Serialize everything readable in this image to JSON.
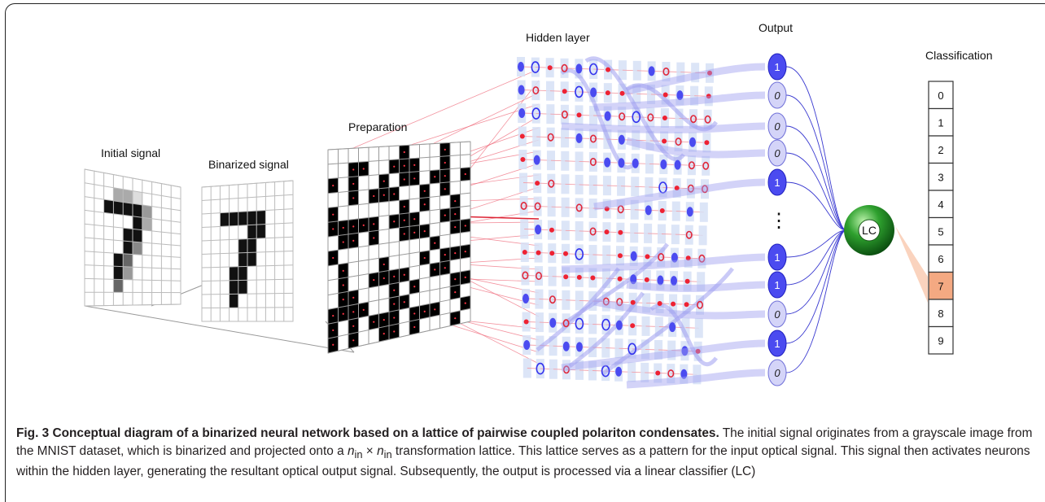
{
  "figure": {
    "labels": {
      "initial": "Initial signal",
      "binarized": "Binarized signal",
      "preparation": "Preparation",
      "hidden": "Hidden layer",
      "output": "Output",
      "classification": "Classification",
      "lc": "LC",
      "ellipsis": "⋮"
    },
    "output_values": [
      "1",
      "0",
      "0",
      "0",
      "1",
      "1",
      "1",
      "0",
      "1",
      "0"
    ],
    "classes": [
      "0",
      "1",
      "2",
      "3",
      "4",
      "5",
      "6",
      "7",
      "8",
      "9"
    ],
    "highlighted_class": "7",
    "colors": {
      "filled_neuron": "#4b4bf0",
      "open_neuron": "#3333ee",
      "red_dot": "#ee2233",
      "red_ring": "#e0283a",
      "lattice_tile": "#d6e0f6",
      "connection": "#9e9ef0",
      "red_line": "#ee6677",
      "lc_green": "#1e8c1e",
      "highlight": "#f4a982"
    }
  },
  "caption": {
    "title": "Fig. 3 Conceptual diagram of a binarized neural network based on a lattice of pairwise coupled polariton condensates.",
    "text_a": " The initial signal originates from a grayscale image from the MNIST dataset, which is binarized and projected onto a ",
    "n": "n",
    "sub": "in",
    "times": " × ",
    "text_b": " transformation lattice. This lattice serves as a pattern for the input optical signal. This signal then activates neurons within the hidden layer, generating the resultant optical output signal. Subsequently, the output is processed via a linear classifier (LC)"
  }
}
